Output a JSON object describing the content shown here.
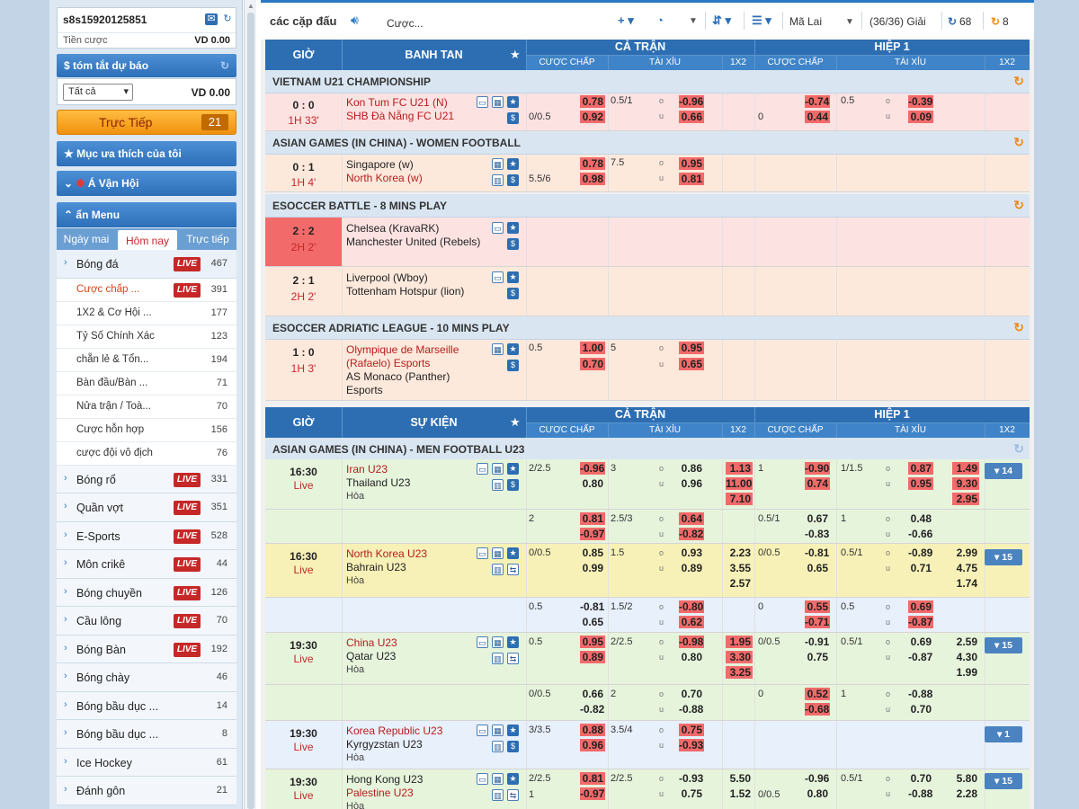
{
  "account": {
    "username": "s8s15920125851",
    "balance_label": "Tiền cược",
    "balance": "VD 0.00"
  },
  "summary": {
    "title": "tóm tắt dự báo",
    "filter": "Tất cả",
    "amount": "VD 0.00"
  },
  "live_button": {
    "label": "Trực Tiếp",
    "count": "21"
  },
  "favorites": "Mục ưa thích của tôi",
  "asian_games": "Á Vận Hội",
  "hide_menu": "ẩn Menu",
  "tabs": [
    "Ngày mai",
    "Hôm nay",
    "Trực tiếp"
  ],
  "soccer": {
    "label": "Bóng đá",
    "count": "467"
  },
  "live_badge": "LIVE",
  "submenu": [
    {
      "label": "Cược chấp ...",
      "count": "391",
      "live": true
    },
    {
      "label": "1X2 & Cơ Hội ...",
      "count": "177"
    },
    {
      "label": "Tỷ Số Chính Xác",
      "count": "123"
    },
    {
      "label": "chẵn lẻ & Tổn...",
      "count": "194"
    },
    {
      "label": "Bàn đầu/Bàn ...",
      "count": "71"
    },
    {
      "label": "Nửa trận / Toà...",
      "count": "70"
    },
    {
      "label": "Cược hỗn hợp",
      "count": "156"
    },
    {
      "label": "cược đội vô địch",
      "count": "76"
    }
  ],
  "sports": [
    {
      "label": "Bóng rổ",
      "count": "331",
      "live": true
    },
    {
      "label": "Quần vợt",
      "count": "351",
      "live": true
    },
    {
      "label": "E-Sports",
      "count": "528",
      "live": true
    },
    {
      "label": "Môn crikê",
      "count": "44",
      "live": true
    },
    {
      "label": "Bóng chuyền",
      "count": "126",
      "live": true
    },
    {
      "label": "Cầu lông",
      "count": "70",
      "live": true
    },
    {
      "label": "Bóng Bàn",
      "count": "192",
      "live": true
    },
    {
      "label": "Bóng chày",
      "count": "46"
    },
    {
      "label": "Bóng bầu dục ...",
      "count": "14"
    },
    {
      "label": "Bóng bầu dục ...",
      "count": "8"
    },
    {
      "label": "Ice Hockey",
      "count": "61"
    },
    {
      "label": "Đánh gôn",
      "count": "21"
    }
  ],
  "toolbar": {
    "title": "các cặp đấu",
    "bet_type": "Cược...",
    "odds_type": "Mã Lai",
    "leagues": "(36/36) Giải",
    "count1": "68",
    "count2": "8"
  },
  "table1": {
    "col_time": "GIỜ",
    "col_event": "BANH TAN",
    "full": "CẢ TRẬN",
    "half": "HIỆP 1",
    "handicap": "CƯỢC CHẤP",
    "ou": "TÀI XỈU",
    "x12": "1X2"
  },
  "table2": {
    "col_time": "GIỜ",
    "col_event": "SỰ KIỆN",
    "full": "CẢ TRẬN",
    "half": "HIỆP 1",
    "handicap": "CƯỢC CHẤP",
    "ou": "TÀI XỈU",
    "x12": "1X2"
  },
  "leagues": {
    "l1": "VIETNAM U21 CHAMPIONSHIP",
    "l2": "ASIAN GAMES (IN CHINA) - WOMEN FOOTBALL",
    "l3": "ESOCCER BATTLE - 8 MINS PLAY",
    "l4": "ESOCCER ADRIATIC LEAGUE - 10 MINS PLAY",
    "l5": "ASIAN GAMES (IN CHINA) - MEN FOOTBALL U23"
  },
  "ou_labels": {
    "o": "o",
    "u": "u"
  },
  "draw": "Hòa",
  "live_word": "Live",
  "m1": {
    "score": "0 : 0",
    "time": "1H 33'",
    "home": "Kon Tum FC U21 (N)",
    "away": "SHB Đà Nẵng FC U21",
    "hdp": "0/0.5",
    "h1": "0.78",
    "h2": "0.92",
    "oul": "0.5/1",
    "ou1": "-0.96",
    "ou2": "0.66",
    "hhdp": "0",
    "hh1": "-0.74",
    "hh2": "0.44",
    "houl": "0.5",
    "hou1": "-0.39",
    "hou2": "0.09"
  },
  "m2": {
    "score": "0 : 1",
    "time": "1H 4'",
    "home": "Singapore (w)",
    "away": "North Korea (w)",
    "hdp": "5.5/6",
    "h1": "0.78",
    "h2": "0.98",
    "oul": "7.5",
    "ou1": "0.95",
    "ou2": "0.81"
  },
  "m3": {
    "score": "2 : 2",
    "time": "2H 2'",
    "home": "Chelsea (KravaRK)",
    "away": "Manchester United (Rebels)"
  },
  "m4": {
    "score": "2 : 1",
    "time": "2H 2'",
    "home": "Liverpool (Wboy)",
    "away": "Tottenham Hotspur (lion)"
  },
  "m5": {
    "score": "1 : 0",
    "time": "1H 3'",
    "home": "Olympique de Marseille (Rafaelo) Esports",
    "away": "AS Monaco (Panther) Esports",
    "hdp": "0.5",
    "h1": "1.00",
    "h2": "0.70",
    "oul": "5",
    "ou1": "0.95",
    "ou2": "0.65"
  },
  "e1": {
    "time": "16:30",
    "home": "Iran U23",
    "away": "Thailand U23",
    "hdp": "2/2.5",
    "h1": "-0.96",
    "h2": "0.80",
    "oul": "3",
    "ou1": "0.86",
    "ou2": "0.96",
    "x1": "1.13",
    "x2": "11.00",
    "xd": "7.10",
    "hhdp": "1",
    "hh1": "-0.90",
    "hh2": "0.74",
    "houl": "1/1.5",
    "hou1": "0.87",
    "hou2": "0.95",
    "hx1": "1.49",
    "hx2": "9.30",
    "hxd": "2.95",
    "more": "14",
    "r2": {
      "hdp": "2",
      "h1": "0.81",
      "h2": "-0.97",
      "oul": "2.5/3",
      "ou1": "0.64",
      "ou2": "-0.82",
      "hhdp": "0.5/1",
      "hh1": "0.67",
      "hh2": "-0.83",
      "houl": "1",
      "hou1": "0.48",
      "hou2": "-0.66"
    }
  },
  "e2": {
    "time": "16:30",
    "home": "North Korea U23",
    "away": "Bahrain U23",
    "hdp": "0/0.5",
    "h1": "0.85",
    "h2": "0.99",
    "oul": "1.5",
    "ou1": "0.93",
    "ou2": "0.89",
    "x1": "2.23",
    "x2": "3.55",
    "xd": "2.57",
    "hhdp": "0/0.5",
    "hh1": "-0.81",
    "hh2": "0.65",
    "houl": "0.5/1",
    "hou1": "-0.89",
    "hou2": "0.71",
    "hx1": "2.99",
    "hx2": "4.75",
    "hxd": "1.74",
    "more": "15",
    "r2": {
      "hdp": "0.5",
      "h1": "-0.81",
      "h2": "0.65",
      "oul": "1.5/2",
      "ou1": "-0.80",
      "ou2": "0.62",
      "hhdp": "0",
      "hh1": "0.55",
      "hh2": "-0.71",
      "houl": "0.5",
      "hou1": "0.69",
      "hou2": "-0.87"
    }
  },
  "e3": {
    "time": "19:30",
    "home": "China U23",
    "away": "Qatar U23",
    "hdp": "0.5",
    "h1": "0.95",
    "h2": "0.89",
    "oul": "2/2.5",
    "ou1": "-0.98",
    "ou2": "0.80",
    "x1": "1.95",
    "x2": "3.30",
    "xd": "3.25",
    "hhdp": "0/0.5",
    "hh1": "-0.91",
    "hh2": "0.75",
    "houl": "0.5/1",
    "hou1": "0.69",
    "hou2": "-0.87",
    "hx1": "2.59",
    "hx2": "4.30",
    "hxd": "1.99",
    "more": "15",
    "r2": {
      "hdp": "0/0.5",
      "h1": "0.66",
      "h2": "-0.82",
      "oul": "2",
      "ou1": "0.70",
      "ou2": "-0.88",
      "hhdp": "0",
      "hh1": "0.52",
      "hh2": "-0.68",
      "houl": "1",
      "hou1": "-0.88",
      "hou2": "0.70"
    }
  },
  "e4": {
    "time": "19:30",
    "home": "Korea Republic U23",
    "away": "Kyrgyzstan U23",
    "hdp": "3/3.5",
    "h1": "0.88",
    "h2": "0.96",
    "oul": "3.5/4",
    "ou1": "0.75",
    "ou2": "-0.93",
    "more": "1"
  },
  "e5": {
    "time": "19:30",
    "home": "Hong Kong U23",
    "away": "Palestine U23",
    "hdp": "2/2.5",
    "hdp2": "1",
    "h1": "0.81",
    "h2": "-0.97",
    "oul": "2/2.5",
    "ou1": "-0.93",
    "ou2": "0.75",
    "x1": "5.50",
    "x2": "1.52",
    "hhdp": "0/0.5",
    "hh1": "-0.96",
    "hh2": "0.80",
    "houl": "0.5/1",
    "hou1": "0.70",
    "hou2": "-0.88",
    "hx1": "5.80",
    "hx2": "2.28",
    "more": "15"
  }
}
